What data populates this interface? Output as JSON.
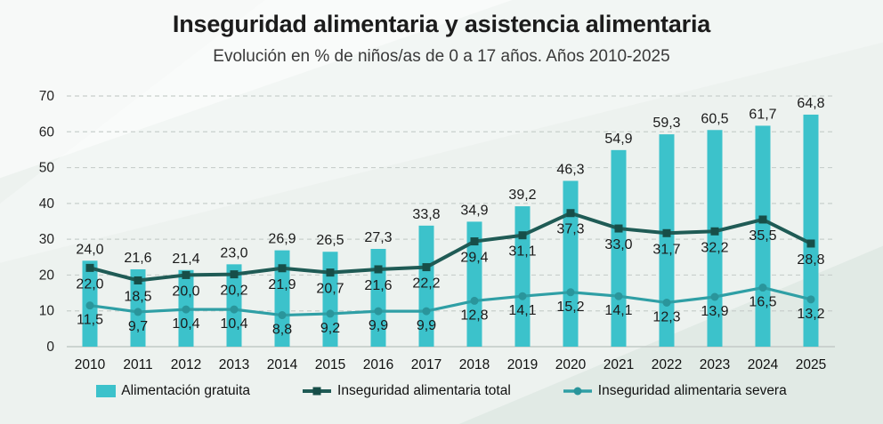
{
  "header": {
    "title": "Inseguridad alimentaria y asistencia alimentaria",
    "subtitle": "Evolución en % de niños/as de 0 a 17 años. Años 2010-2025"
  },
  "chart_data": {
    "type": "bar+line",
    "title": "Inseguridad alimentaria y asistencia alimentaria",
    "subtitle": "Evolución en % de niños/as de 0 a 17 años. Años 2010-2025",
    "categories": [
      "2010",
      "2011",
      "2012",
      "2013",
      "2014",
      "2015",
      "2016",
      "2017",
      "2018",
      "2019",
      "2020",
      "2021",
      "2022",
      "2023",
      "2024",
      "2025"
    ],
    "series": [
      {
        "name": "Alimentación gratuita",
        "type": "bar",
        "color": "#3cc2cb",
        "values": [
          24.0,
          21.6,
          21.4,
          23.0,
          26.9,
          26.5,
          27.3,
          33.8,
          34.9,
          39.2,
          46.3,
          54.9,
          59.3,
          60.5,
          61.7,
          64.8
        ]
      },
      {
        "name": "Inseguridad alimentaria total",
        "type": "line",
        "color": "#1f5b55",
        "marker": "square",
        "marker_color": "#174e48",
        "values": [
          22.0,
          18.5,
          20.0,
          20.2,
          21.9,
          20.7,
          21.6,
          22.2,
          29.4,
          31.1,
          37.3,
          33.0,
          31.7,
          32.2,
          35.5,
          28.8
        ]
      },
      {
        "name": "Inseguridad alimentaria severa",
        "type": "line",
        "color": "#2f9fa5",
        "marker": "circle",
        "marker_color": "#2a959b",
        "values": [
          11.5,
          9.7,
          10.4,
          10.4,
          8.8,
          9.2,
          9.9,
          9.9,
          12.8,
          14.1,
          15.2,
          14.1,
          12.3,
          13.9,
          16.5,
          13.2
        ]
      }
    ],
    "xlabel": "",
    "ylabel": "",
    "ylim": [
      0,
      70
    ],
    "yticks": [
      0,
      10,
      20,
      30,
      40,
      50,
      60,
      70
    ],
    "grid": "horizontal-dashed",
    "legend_position": "bottom",
    "decimal_separator": ",",
    "value_labels": "all points, one decimal"
  },
  "style": {
    "grid_color": "#c8cfcc",
    "baseline_color": "#c2c9c6",
    "label_color": "#1a1a1a",
    "tick_color": "#222222"
  }
}
